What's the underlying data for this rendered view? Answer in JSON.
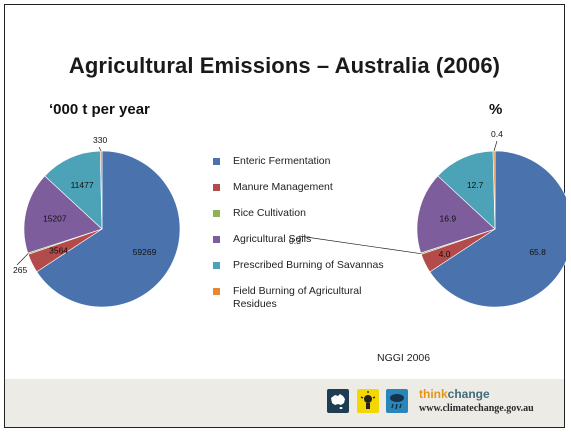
{
  "title": "Agricultural Emissions – Australia (2006)",
  "source": "NGGI 2006",
  "colors": [
    "#4a73ad",
    "#b24b49",
    "#92b055",
    "#7e5d9c",
    "#4ca3b8",
    "#e8872f"
  ],
  "chart_data": [
    {
      "type": "pie",
      "title": "‘000 t per year",
      "categories": [
        "Enteric Fermentation",
        "Manure Management",
        "Rice Cultivation",
        "Agricultural Soils",
        "Prescribed Burning of Savannas",
        "Field Burning of Agricultural Residues"
      ],
      "values": [
        59269,
        3564,
        265,
        15207,
        11477,
        330
      ],
      "labels": [
        "59269",
        "3564",
        "265",
        "15207",
        "11477",
        "330"
      ]
    },
    {
      "type": "pie",
      "title": "%",
      "categories": [
        "Enteric Fermentation",
        "Manure Management",
        "Rice Cultivation",
        "Agricultural Soils",
        "Prescribed Burning of Savannas",
        "Field Burning of Agricultural Residues"
      ],
      "values": [
        65.8,
        4.0,
        0.3,
        16.9,
        12.7,
        0.4
      ],
      "labels": [
        "65.8",
        "4.0",
        "0.3",
        "16.9",
        "12.7",
        "0.4"
      ]
    }
  ],
  "legend": [
    "Enteric Fermentation",
    "Manure Management",
    "Rice Cultivation",
    "Agricultural Soils",
    "Prescribed Burning of Savannas",
    "Field Burning of Agricultural Residues"
  ],
  "footer": {
    "brand_think": "think",
    "brand_change": "change",
    "url": "www.climatechange.gov.au",
    "icons": [
      "australia-map-icon",
      "light-bulb-icon",
      "rain-cloud-icon"
    ]
  }
}
